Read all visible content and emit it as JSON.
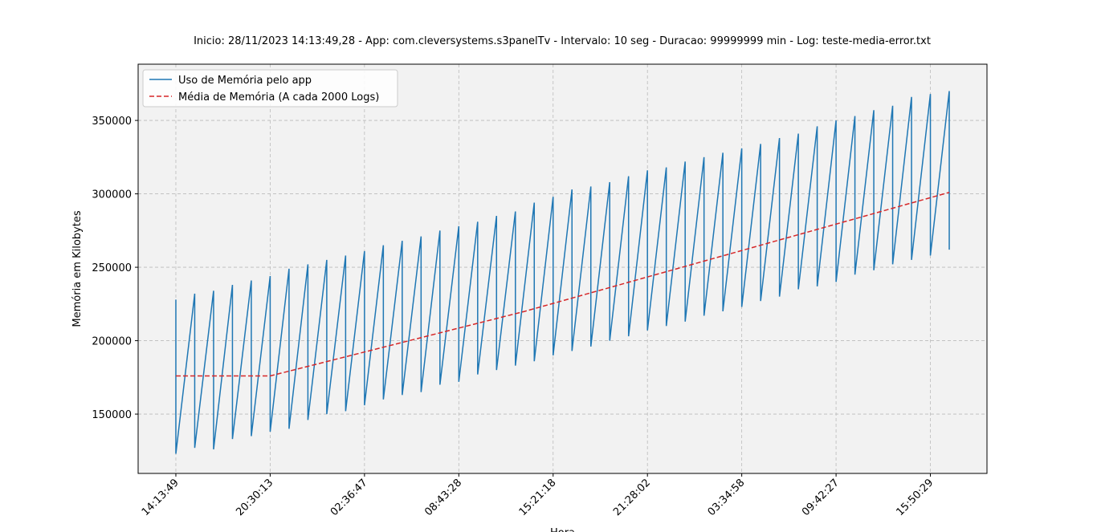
{
  "chart_data": {
    "type": "line",
    "title": "Inicio: 28/11/2023 14:13:49,28 - App: com.cleversystems.s3panelTv - Intervalo: 10 seg - Duracao: 99999999 min - Log: teste-media-error.txt",
    "x_label": "Hora",
    "y_label": "Memória em Kilobytes",
    "xlim": [
      -800,
      17200
    ],
    "ylim": [
      109600,
      388300
    ],
    "xticks": [
      {
        "value": 0,
        "label": "14:13:49"
      },
      {
        "value": 2000,
        "label": "20:30:13"
      },
      {
        "value": 4000,
        "label": "02:36:47"
      },
      {
        "value": 6000,
        "label": "08:43:28"
      },
      {
        "value": 8000,
        "label": "15:21:18"
      },
      {
        "value": 10000,
        "label": "21:28:02"
      },
      {
        "value": 12000,
        "label": "03:34:58"
      },
      {
        "value": 14000,
        "label": "09:42:27"
      },
      {
        "value": 16000,
        "label": "15:50:29"
      }
    ],
    "yticks": [
      150000,
      200000,
      250000,
      300000,
      350000
    ],
    "grid": true,
    "legend": "upper left",
    "series": [
      {
        "name": "Uso de Memória pelo app",
        "color": "#1f77b4",
        "style": "solid",
        "x": [
          0,
          0,
          400,
          400,
          800,
          800,
          1200,
          1200,
          1600,
          1600,
          2000,
          2000,
          2400,
          2400,
          2800,
          2800,
          3200,
          3200,
          3600,
          3600,
          4000,
          4000,
          4400,
          4400,
          4800,
          4800,
          5200,
          5200,
          5600,
          5600,
          6000,
          6000,
          6400,
          6400,
          6800,
          6800,
          7200,
          7200,
          7600,
          7600,
          8000,
          8000,
          8400,
          8400,
          8800,
          8800,
          9200,
          9200,
          9600,
          9600,
          10000,
          10000,
          10400,
          10400,
          10800,
          10800,
          11200,
          11200,
          11600,
          11600,
          12000,
          12000,
          12400,
          12400,
          12800,
          12800,
          13200,
          13200,
          13600,
          13600,
          14000,
          14000,
          14400,
          14400,
          14800,
          14800,
          15200,
          15200,
          15600,
          15600,
          16000,
          16000,
          16400,
          16400
        ],
        "values": [
          228000,
          123000,
          232000,
          127000,
          234000,
          126000,
          238000,
          133000,
          241000,
          135000,
          244000,
          138000,
          249000,
          140000,
          252000,
          146000,
          255000,
          150000,
          258000,
          152000,
          261000,
          156000,
          265000,
          160000,
          268000,
          163000,
          271000,
          165000,
          275000,
          170000,
          278000,
          172000,
          281000,
          177000,
          285000,
          180000,
          288000,
          183000,
          294000,
          186000,
          298000,
          190000,
          303000,
          193000,
          305000,
          196000,
          308000,
          200000,
          312000,
          203000,
          316000,
          207000,
          318000,
          210000,
          322000,
          213000,
          325000,
          217000,
          328000,
          220000,
          331000,
          223000,
          334000,
          227000,
          338000,
          230000,
          341000,
          235000,
          346000,
          237000,
          350000,
          240000,
          353000,
          245000,
          357000,
          248000,
          360000,
          252000,
          366000,
          255000,
          368000,
          258000,
          370000,
          262000
        ]
      },
      {
        "name": "Média de Memória (A cada 2000 Logs)",
        "color": "#d62728",
        "style": "dashed",
        "x": [
          0,
          2000,
          7400,
          16400
        ],
        "values": [
          176000,
          176000,
          220000,
          301000
        ]
      }
    ]
  }
}
